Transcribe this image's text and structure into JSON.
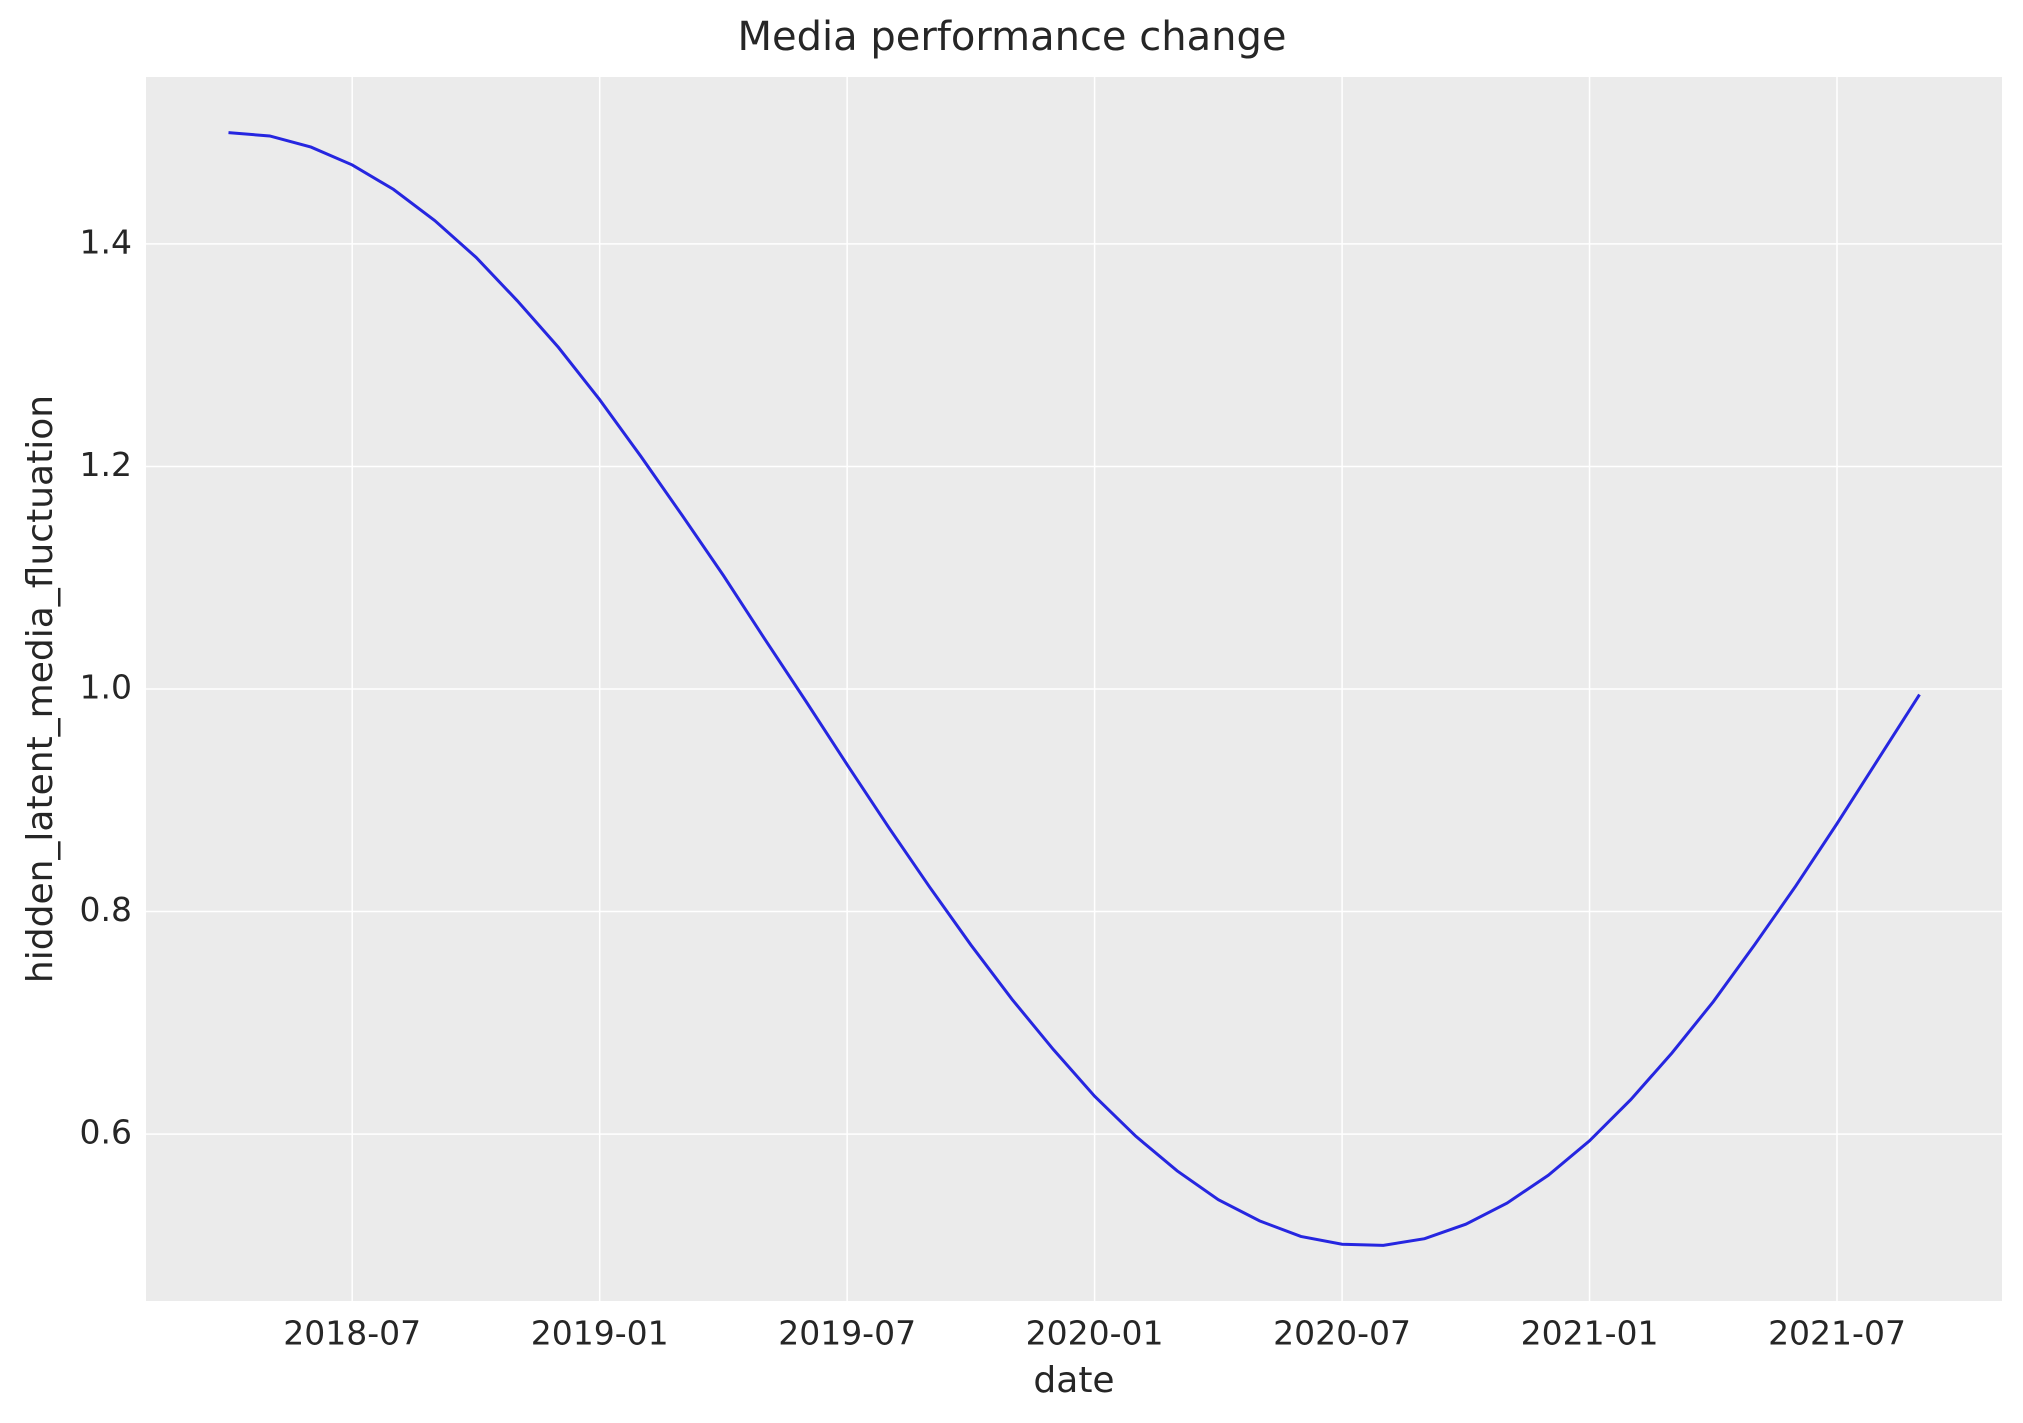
{
  "chart_data": {
    "type": "line",
    "title": "Media performance change",
    "x_label": "date",
    "y_label": "hidden_latent_media_fluctuation",
    "x": [
      "2018-04",
      "2018-05",
      "2018-06",
      "2018-07",
      "2018-08",
      "2018-09",
      "2018-10",
      "2018-11",
      "2018-12",
      "2019-01",
      "2019-02",
      "2019-03",
      "2019-04",
      "2019-05",
      "2019-06",
      "2019-07",
      "2019-08",
      "2019-09",
      "2019-10",
      "2019-11",
      "2019-12",
      "2020-01",
      "2020-02",
      "2020-03",
      "2020-04",
      "2020-05",
      "2020-06",
      "2020-07",
      "2020-08",
      "2020-09",
      "2020-10",
      "2020-11",
      "2020-12",
      "2021-01",
      "2021-02",
      "2021-03",
      "2021-04",
      "2021-05",
      "2021-06",
      "2021-07",
      "2021-08",
      "2021-09"
    ],
    "series": [
      {
        "name": "hidden_latent_media_fluctuation",
        "color": "#2626e0",
        "values": [
          1.5,
          1.497,
          1.487,
          1.471,
          1.449,
          1.421,
          1.388,
          1.349,
          1.307,
          1.26,
          1.209,
          1.156,
          1.102,
          1.045,
          0.989,
          0.932,
          0.876,
          0.822,
          0.77,
          0.721,
          0.676,
          0.634,
          0.598,
          0.567,
          0.541,
          0.522,
          0.508,
          0.501,
          0.5,
          0.506,
          0.519,
          0.538,
          0.563,
          0.594,
          0.631,
          0.673,
          0.719,
          0.77,
          0.823,
          0.879,
          0.937,
          0.995
        ]
      }
    ],
    "xlim": [
      "2018-02",
      "2021-11"
    ],
    "xticks": [
      "2018-07",
      "2019-01",
      "2019-07",
      "2020-01",
      "2020-07",
      "2021-01",
      "2021-07"
    ],
    "ylim": [
      0.45,
      1.55
    ],
    "yticks": [
      {
        "value": 0.6,
        "label": "0.6"
      },
      {
        "value": 0.8,
        "label": "0.8"
      },
      {
        "value": 1.0,
        "label": "1.0"
      },
      {
        "value": 1.2,
        "label": "1.2"
      },
      {
        "value": 1.4,
        "label": "1.4"
      }
    ],
    "grid": true
  }
}
